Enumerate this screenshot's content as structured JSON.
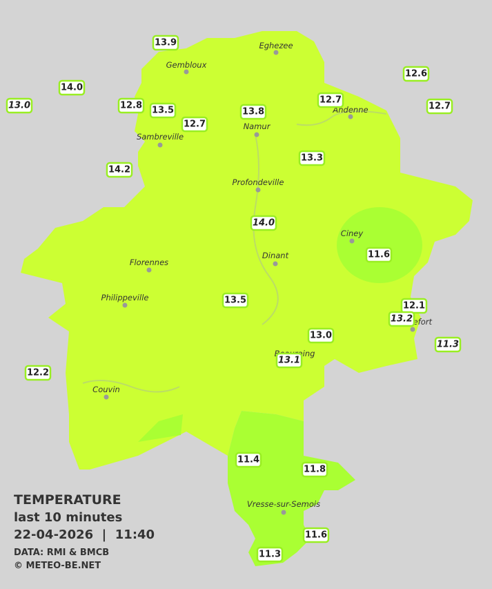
{
  "map": {
    "towns": [
      "Eghezee",
      "Gembloux",
      "Andenne",
      "Namur",
      "Sambreville",
      "Profondeville",
      "Ciney",
      "Dinant",
      "Florennes",
      "Philippeville",
      "Rochefort",
      "Beauraing",
      "Couvin",
      "Vresse-sur-Semois"
    ],
    "stations": [
      "13.9",
      "14.0",
      "13.0",
      "12.8",
      "13.5",
      "12.7",
      "13.8",
      "12.7",
      "12.6",
      "12.7",
      "14.2",
      "13.3",
      "14.0",
      "11.6",
      "13.5",
      "12.1",
      "13.2",
      "11.3",
      "13.0",
      "13.1",
      "12.2",
      "11.4",
      "11.8",
      "11.6",
      "11.3"
    ],
    "legend": {
      "title": "TEMPERATURE",
      "subtitle": "last 10 minutes",
      "datetime": "22-04-2026  |  11:40",
      "source": "DATA: RMI & BMCB",
      "copyright": "© METEO-BE.NET"
    }
  }
}
